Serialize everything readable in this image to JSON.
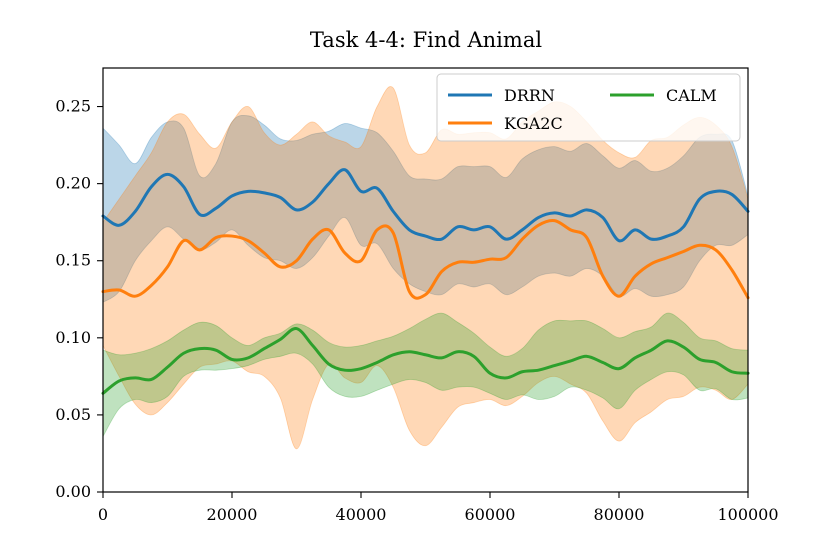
{
  "chart_data": {
    "type": "line",
    "title": "Task 4-4: Find Animal",
    "xlabel": "",
    "ylabel": "",
    "xlim": [
      0,
      100000
    ],
    "ylim": [
      0,
      0.275
    ],
    "xticks": [
      0,
      20000,
      40000,
      60000,
      80000,
      100000
    ],
    "xtick_labels": [
      "0",
      "20000",
      "40000",
      "60000",
      "80000",
      "100000"
    ],
    "yticks": [
      0.0,
      0.05,
      0.1,
      0.15,
      0.2,
      0.25
    ],
    "ytick_labels": [
      "0.00",
      "0.05",
      "0.10",
      "0.15",
      "0.20",
      "0.25"
    ],
    "grid": false,
    "legend": {
      "placement": "top-right",
      "columns": 2
    },
    "series": [
      {
        "name": "DRRN",
        "color": "#1f77b4",
        "x": [
          0,
          2500,
          5000,
          7500,
          10000,
          12500,
          15000,
          17500,
          20000,
          22500,
          25000,
          27500,
          30000,
          32500,
          35000,
          37500,
          40000,
          42500,
          45000,
          47500,
          50000,
          52500,
          55000,
          57500,
          60000,
          62500,
          65000,
          67500,
          70000,
          72500,
          75000,
          77500,
          80000,
          82500,
          85000,
          87500,
          90000,
          92500,
          95000,
          97500,
          100000
        ],
        "mean": [
          0.179,
          0.173,
          0.182,
          0.198,
          0.206,
          0.198,
          0.18,
          0.184,
          0.192,
          0.195,
          0.194,
          0.191,
          0.183,
          0.188,
          0.2,
          0.209,
          0.195,
          0.197,
          0.182,
          0.17,
          0.166,
          0.164,
          0.172,
          0.17,
          0.172,
          0.164,
          0.17,
          0.178,
          0.181,
          0.179,
          0.183,
          0.178,
          0.163,
          0.17,
          0.164,
          0.166,
          0.172,
          0.19,
          0.195,
          0.193,
          0.182
        ],
        "upper": [
          0.236,
          0.225,
          0.213,
          0.23,
          0.24,
          0.236,
          0.205,
          0.213,
          0.24,
          0.244,
          0.238,
          0.229,
          0.228,
          0.232,
          0.234,
          0.239,
          0.236,
          0.233,
          0.221,
          0.205,
          0.203,
          0.203,
          0.211,
          0.211,
          0.211,
          0.204,
          0.216,
          0.222,
          0.224,
          0.221,
          0.226,
          0.218,
          0.21,
          0.215,
          0.208,
          0.21,
          0.218,
          0.23,
          0.232,
          0.228,
          0.192
        ],
        "lower": [
          0.123,
          0.13,
          0.15,
          0.163,
          0.172,
          0.164,
          0.157,
          0.162,
          0.17,
          0.16,
          0.152,
          0.15,
          0.145,
          0.152,
          0.166,
          0.178,
          0.16,
          0.161,
          0.145,
          0.135,
          0.13,
          0.128,
          0.135,
          0.133,
          0.135,
          0.128,
          0.133,
          0.14,
          0.142,
          0.14,
          0.145,
          0.14,
          0.127,
          0.132,
          0.127,
          0.128,
          0.133,
          0.15,
          0.16,
          0.16,
          0.167
        ]
      },
      {
        "name": "KGA2C",
        "color": "#ff7f0e",
        "x": [
          0,
          2500,
          5000,
          7500,
          10000,
          12500,
          15000,
          17500,
          20000,
          22500,
          25000,
          27500,
          30000,
          32500,
          35000,
          37500,
          40000,
          42500,
          45000,
          47500,
          50000,
          52500,
          55000,
          57500,
          60000,
          62500,
          65000,
          67500,
          70000,
          72500,
          75000,
          77500,
          80000,
          82500,
          85000,
          87500,
          90000,
          92500,
          95000,
          97500,
          100000
        ],
        "mean": [
          0.13,
          0.131,
          0.127,
          0.134,
          0.146,
          0.163,
          0.157,
          0.165,
          0.166,
          0.163,
          0.155,
          0.146,
          0.15,
          0.164,
          0.17,
          0.155,
          0.15,
          0.17,
          0.168,
          0.13,
          0.128,
          0.143,
          0.149,
          0.149,
          0.151,
          0.152,
          0.164,
          0.173,
          0.176,
          0.17,
          0.165,
          0.14,
          0.127,
          0.14,
          0.148,
          0.152,
          0.156,
          0.16,
          0.157,
          0.144,
          0.126
        ],
        "upper": [
          0.175,
          0.19,
          0.205,
          0.22,
          0.24,
          0.245,
          0.232,
          0.223,
          0.24,
          0.25,
          0.233,
          0.225,
          0.232,
          0.24,
          0.231,
          0.227,
          0.224,
          0.25,
          0.262,
          0.225,
          0.22,
          0.235,
          0.232,
          0.233,
          0.233,
          0.229,
          0.24,
          0.247,
          0.253,
          0.25,
          0.24,
          0.228,
          0.22,
          0.217,
          0.228,
          0.23,
          0.238,
          0.243,
          0.238,
          0.224,
          0.19
        ],
        "lower": [
          0.095,
          0.075,
          0.057,
          0.05,
          0.058,
          0.07,
          0.081,
          0.083,
          0.085,
          0.078,
          0.075,
          0.061,
          0.028,
          0.06,
          0.083,
          0.074,
          0.071,
          0.082,
          0.068,
          0.04,
          0.03,
          0.042,
          0.055,
          0.058,
          0.06,
          0.056,
          0.062,
          0.071,
          0.075,
          0.07,
          0.064,
          0.046,
          0.033,
          0.045,
          0.052,
          0.06,
          0.062,
          0.068,
          0.066,
          0.06,
          0.07
        ]
      },
      {
        "name": "CALM",
        "color": "#2ca02c",
        "x": [
          0,
          2500,
          5000,
          7500,
          10000,
          12500,
          15000,
          17500,
          20000,
          22500,
          25000,
          27500,
          30000,
          32500,
          35000,
          37500,
          40000,
          42500,
          45000,
          47500,
          50000,
          52500,
          55000,
          57500,
          60000,
          62500,
          65000,
          67500,
          70000,
          72500,
          75000,
          77500,
          80000,
          82500,
          85000,
          87500,
          90000,
          92500,
          95000,
          97500,
          100000
        ],
        "mean": [
          0.064,
          0.072,
          0.074,
          0.073,
          0.081,
          0.09,
          0.093,
          0.092,
          0.086,
          0.087,
          0.093,
          0.099,
          0.106,
          0.095,
          0.083,
          0.079,
          0.08,
          0.084,
          0.089,
          0.091,
          0.089,
          0.087,
          0.091,
          0.088,
          0.077,
          0.074,
          0.078,
          0.079,
          0.082,
          0.085,
          0.088,
          0.084,
          0.08,
          0.087,
          0.092,
          0.098,
          0.094,
          0.086,
          0.084,
          0.078,
          0.077
        ],
        "upper": [
          0.092,
          0.089,
          0.09,
          0.093,
          0.098,
          0.105,
          0.11,
          0.108,
          0.1,
          0.095,
          0.1,
          0.103,
          0.109,
          0.105,
          0.097,
          0.094,
          0.095,
          0.098,
          0.101,
          0.106,
          0.112,
          0.116,
          0.11,
          0.103,
          0.094,
          0.088,
          0.093,
          0.105,
          0.111,
          0.111,
          0.111,
          0.106,
          0.1,
          0.104,
          0.107,
          0.116,
          0.11,
          0.1,
          0.098,
          0.093,
          0.092
        ],
        "lower": [
          0.036,
          0.054,
          0.06,
          0.058,
          0.062,
          0.075,
          0.079,
          0.079,
          0.08,
          0.082,
          0.086,
          0.088,
          0.09,
          0.083,
          0.068,
          0.062,
          0.062,
          0.066,
          0.07,
          0.073,
          0.071,
          0.066,
          0.068,
          0.068,
          0.064,
          0.06,
          0.063,
          0.06,
          0.062,
          0.068,
          0.066,
          0.061,
          0.054,
          0.066,
          0.073,
          0.078,
          0.076,
          0.066,
          0.067,
          0.06,
          0.061
        ]
      }
    ]
  }
}
